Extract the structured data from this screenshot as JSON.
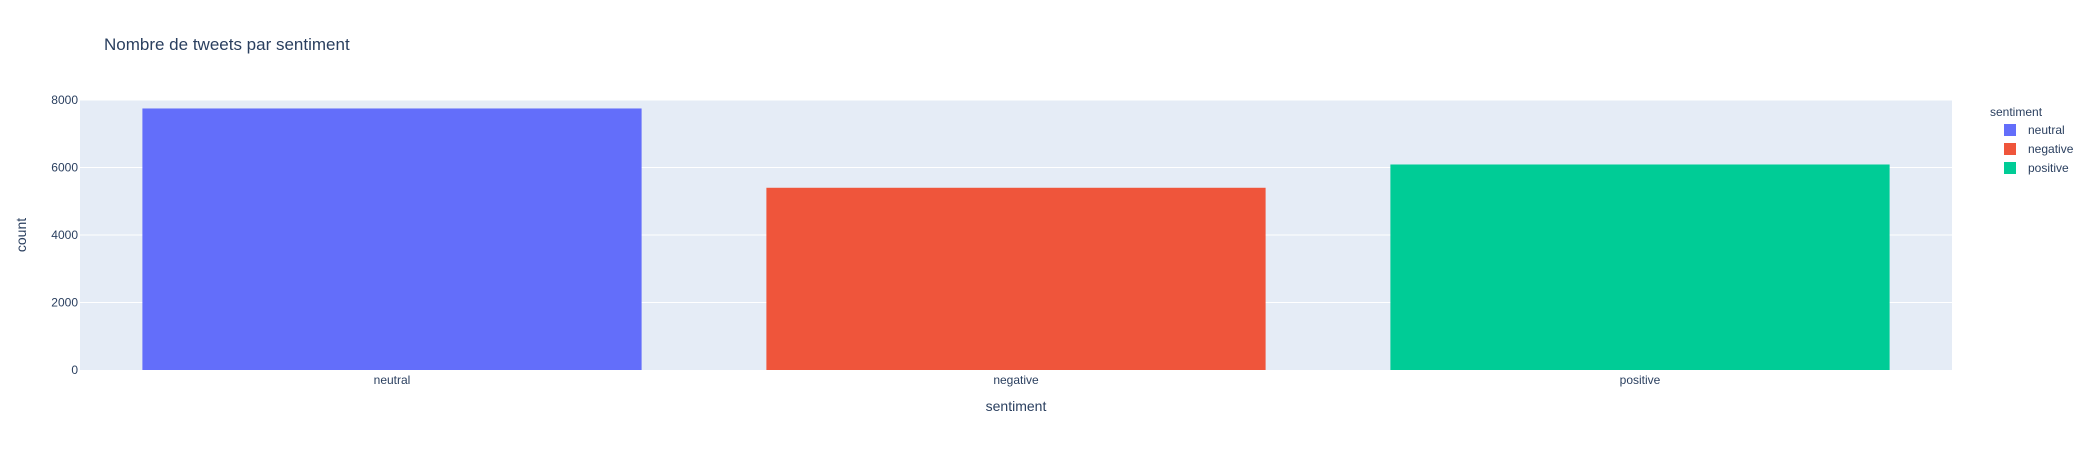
{
  "chart_data": {
    "type": "bar",
    "title": "Nombre de tweets par sentiment",
    "xlabel": "sentiment",
    "ylabel": "count",
    "categories": [
      "neutral",
      "negative",
      "positive"
    ],
    "values": [
      7750,
      5400,
      6090
    ],
    "ylim": [
      0,
      8000
    ],
    "yticks": [
      0,
      2000,
      4000,
      6000,
      8000
    ],
    "grid": true,
    "legend": {
      "title": "sentiment",
      "placement": "top-right",
      "items": [
        "neutral",
        "negative",
        "positive"
      ]
    },
    "colors": {
      "neutral": "#636efa",
      "negative": "#ef553b",
      "positive": "#00cc96"
    },
    "plot_background": "#e5ecf6"
  }
}
